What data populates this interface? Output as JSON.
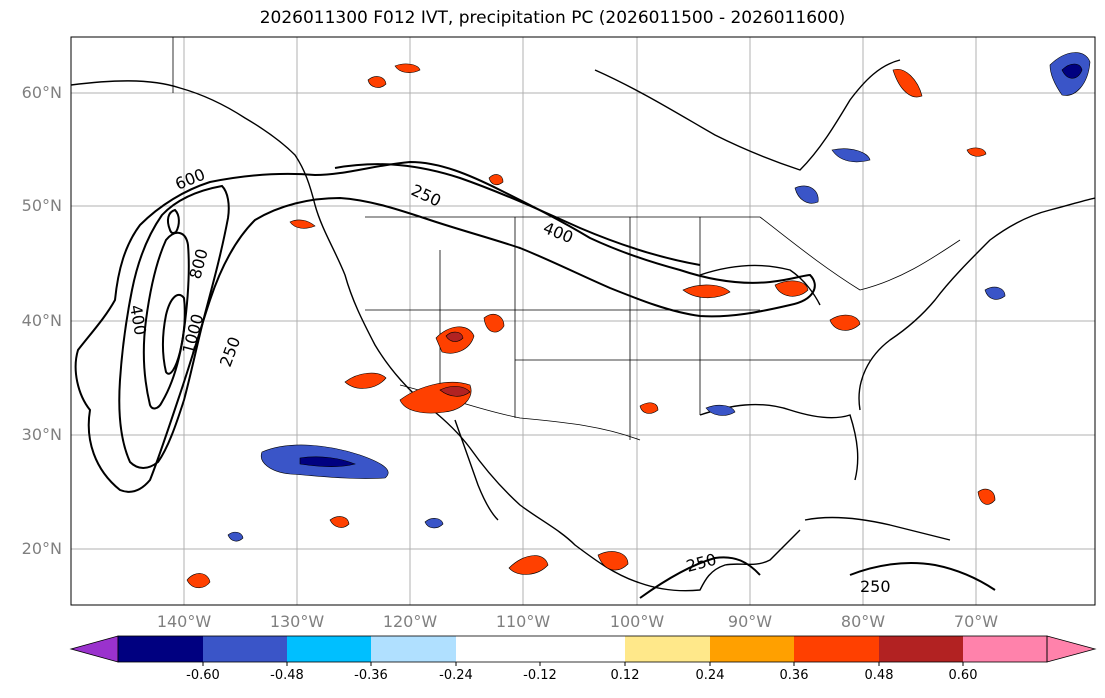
{
  "title": "2026011300 F012 IVT, precipitation PC (2026011500 - 2026011600)",
  "map": {
    "lat_labels": [
      "60°N",
      "50°N",
      "40°N",
      "30°N",
      "20°N"
    ],
    "lon_labels": [
      "140°W",
      "130°W",
      "120°W",
      "110°W",
      "100°W",
      "90°W",
      "80°W",
      "70°W"
    ],
    "ivt_contour_labels": [
      "600",
      "250",
      "400",
      "800",
      "1000",
      "400",
      "250",
      "250",
      "250"
    ],
    "grid": true,
    "line_color": "#000000",
    "grid_color": "#b0b0b0"
  },
  "colorbar": {
    "ticks": [
      "-0.60",
      "-0.48",
      "-0.36",
      "-0.24",
      "-0.12",
      "0.12",
      "0.24",
      "0.36",
      "0.48",
      "0.60"
    ],
    "colors": [
      "#9a32cd",
      "#000080",
      "#3a55c8",
      "#00bfff",
      "#b0e0ff",
      "#ffffff",
      "#ffe88a",
      "#ffa000",
      "#ff4000",
      "#b22222",
      "#ff82ab"
    ],
    "extend": "both"
  }
}
